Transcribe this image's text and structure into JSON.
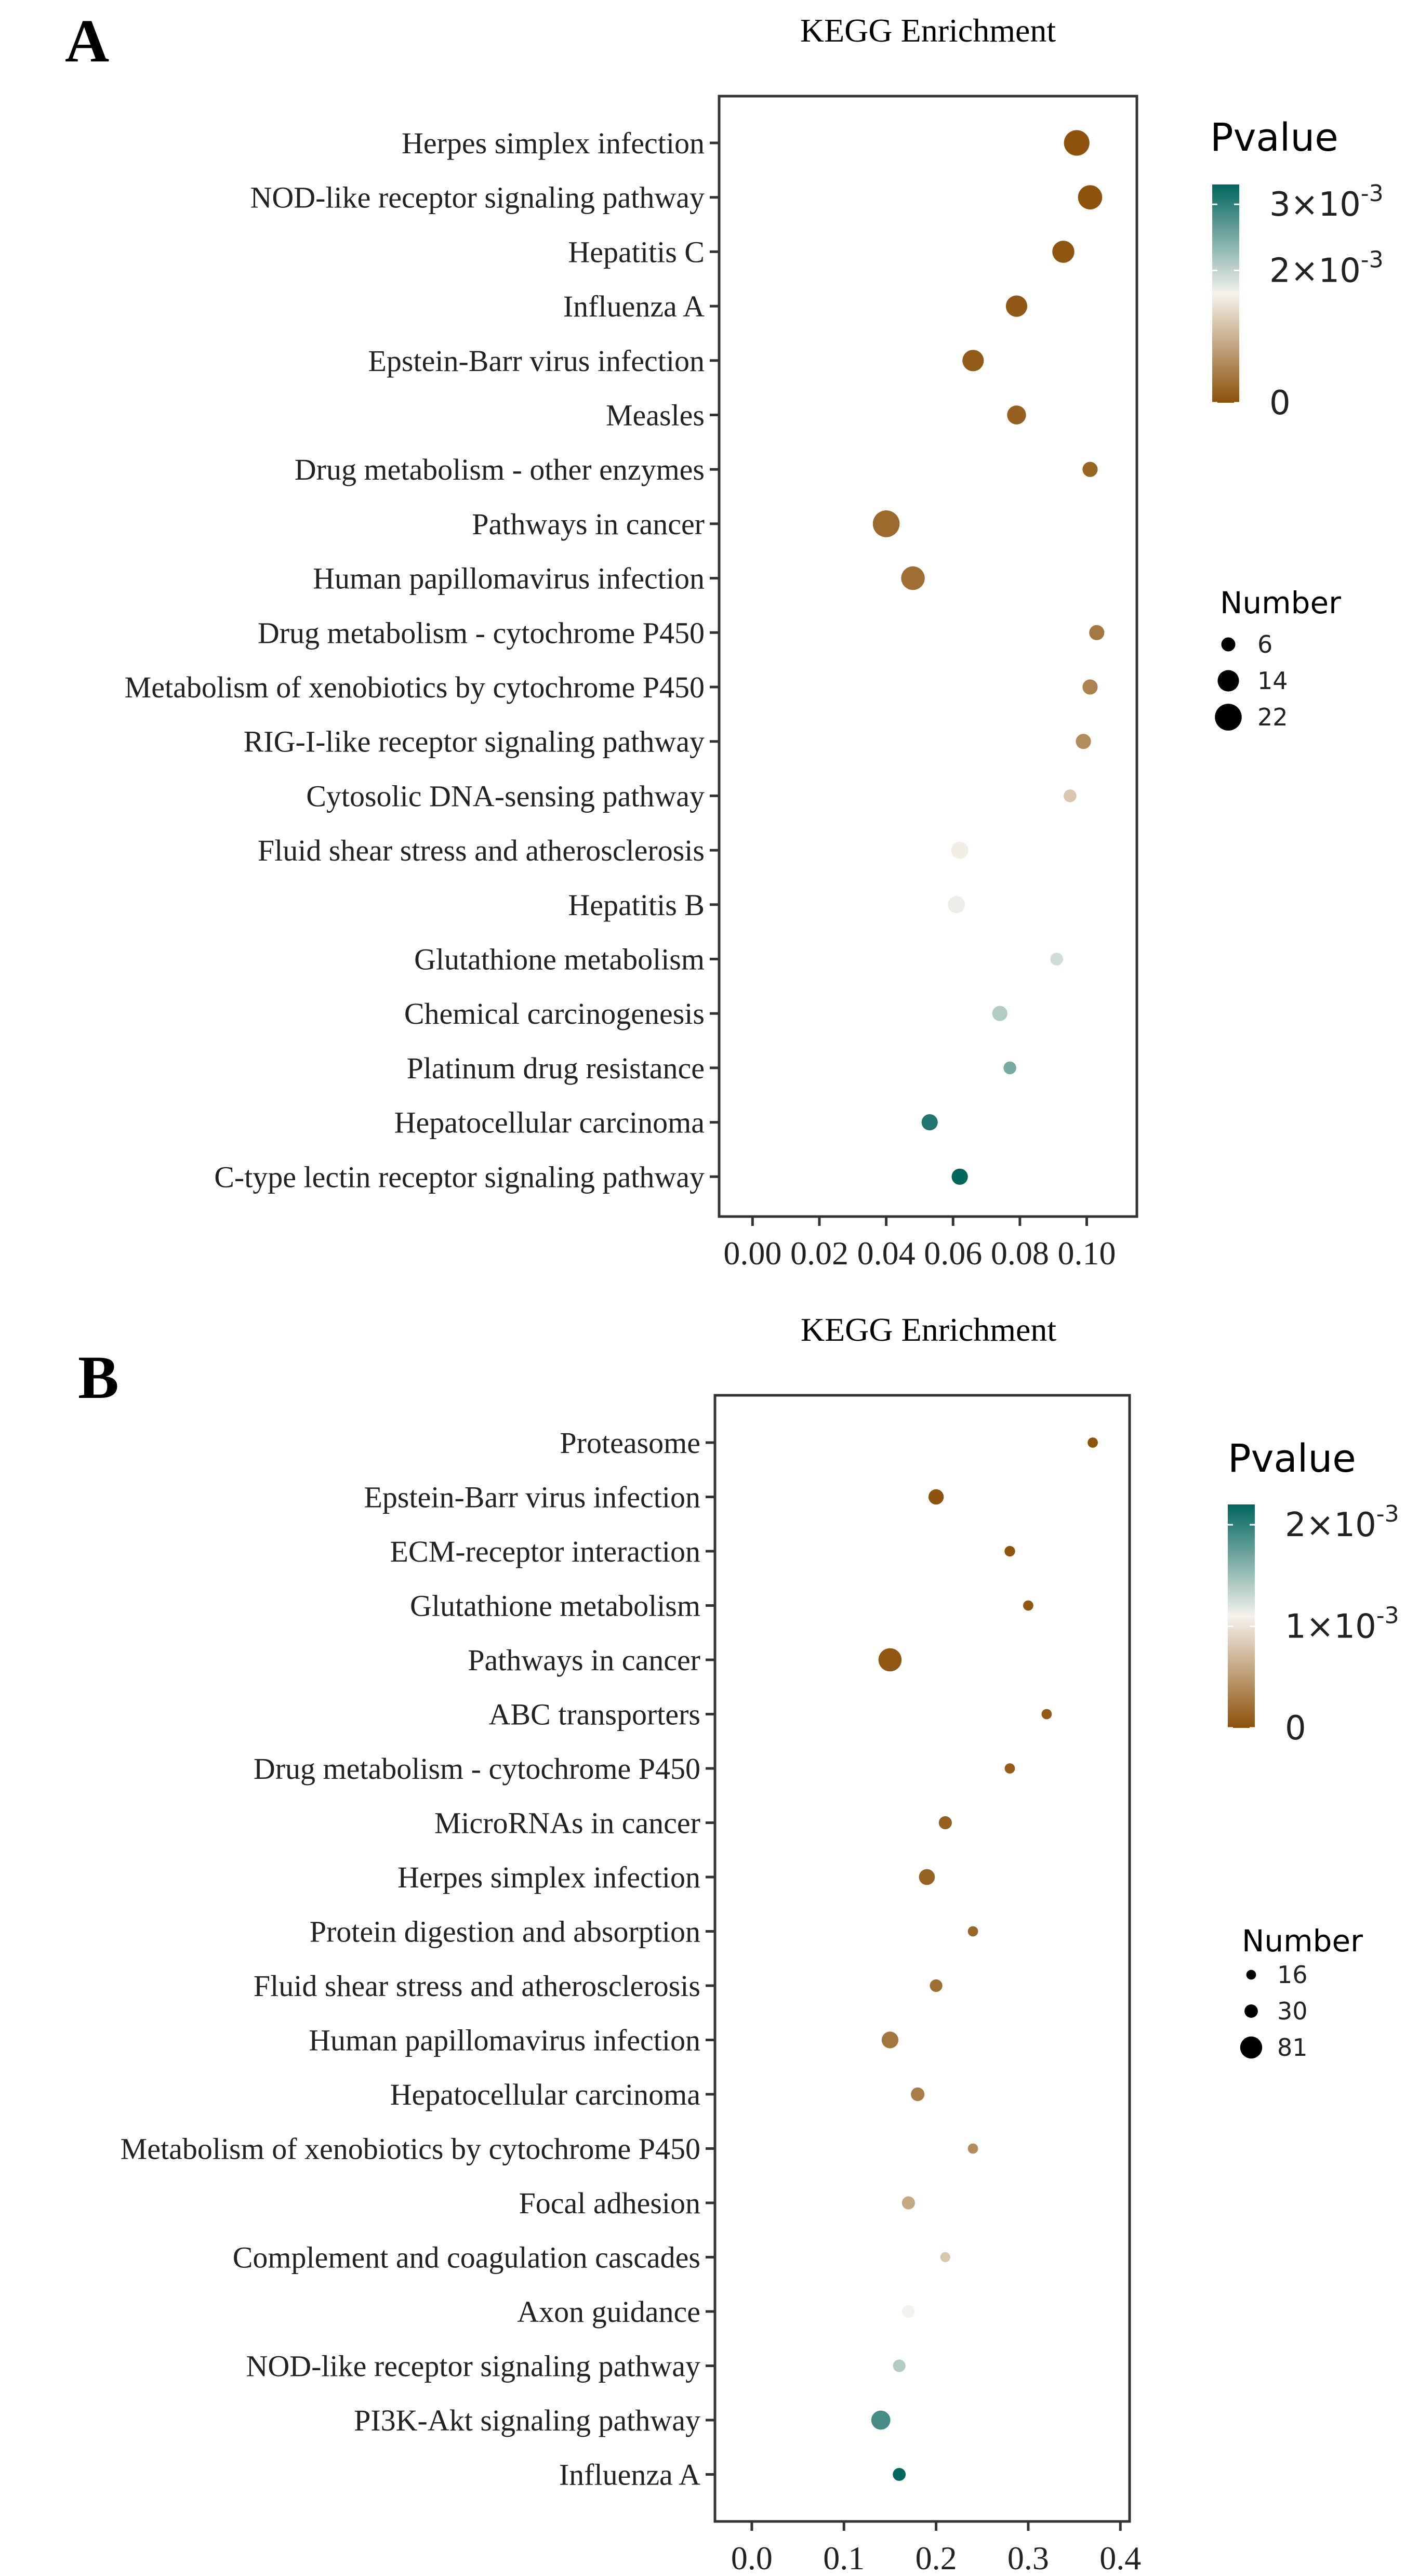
{
  "chart_data": [
    {
      "type": "scatter",
      "panel_label": "A",
      "title": "KEGG Enrichment",
      "xlabel": "",
      "ylabel": "",
      "xlim": [
        -0.01,
        0.115
      ],
      "x_ticks": [
        0.0,
        0.02,
        0.04,
        0.06,
        0.08,
        0.1
      ],
      "x_tick_labels": [
        "0.00",
        "0.02",
        "0.04",
        "0.06",
        "0.08",
        "0.10"
      ],
      "grid": false,
      "legend_position": "right",
      "color_legend": {
        "title": "Pvalue",
        "min": 0,
        "max": 0.0033,
        "low_color": "#8C510A",
        "mid_color": "#F5F2EC",
        "high_color": "#01665E",
        "ticks": [
          {
            "value": 0,
            "base": "0",
            "exp": ""
          },
          {
            "value": 0.002,
            "base": "2×10",
            "exp": "-3"
          },
          {
            "value": 0.003,
            "base": "3×10",
            "exp": "-3"
          }
        ]
      },
      "size_legend": {
        "title": "Number",
        "entries": [
          {
            "value": 6,
            "label": "6"
          },
          {
            "value": 14,
            "label": "14"
          },
          {
            "value": 22,
            "label": "22"
          }
        ]
      },
      "points": [
        {
          "pathway": "Herpes simplex infection",
          "x": 0.097,
          "number": 20,
          "pvalue": 1e-05
        },
        {
          "pathway": "NOD-like receptor signaling pathway",
          "x": 0.101,
          "number": 18,
          "pvalue": 2e-05
        },
        {
          "pathway": "Hepatitis C",
          "x": 0.093,
          "number": 15,
          "pvalue": 5e-05
        },
        {
          "pathway": "Influenza A",
          "x": 0.079,
          "number": 14,
          "pvalue": 8e-05
        },
        {
          "pathway": "Epstein-Barr virus infection",
          "x": 0.066,
          "number": 14,
          "pvalue": 0.0001
        },
        {
          "pathway": "Measles",
          "x": 0.079,
          "number": 11,
          "pvalue": 0.00015
        },
        {
          "pathway": "Drug metabolism - other enzymes",
          "x": 0.101,
          "number": 7,
          "pvalue": 0.0002
        },
        {
          "pathway": "Pathways in cancer",
          "x": 0.04,
          "number": 22,
          "pvalue": 0.00025
        },
        {
          "pathway": "Human papillomavirus infection",
          "x": 0.048,
          "number": 17,
          "pvalue": 0.0003
        },
        {
          "pathway": "Drug metabolism - cytochrome P450",
          "x": 0.103,
          "number": 7,
          "pvalue": 0.0004
        },
        {
          "pathway": "Metabolism of xenobiotics by cytochrome P450",
          "x": 0.101,
          "number": 7,
          "pvalue": 0.0005
        },
        {
          "pathway": "RIG-I-like receptor signaling pathway",
          "x": 0.099,
          "number": 7,
          "pvalue": 0.0006
        },
        {
          "pathway": "Cytosolic DNA-sensing pathway",
          "x": 0.095,
          "number": 5,
          "pvalue": 0.0012
        },
        {
          "pathway": "Fluid shear stress and atherosclerosis",
          "x": 0.062,
          "number": 9,
          "pvalue": 0.0016
        },
        {
          "pathway": "Hepatitis B",
          "x": 0.061,
          "number": 9,
          "pvalue": 0.0017
        },
        {
          "pathway": "Glutathione metabolism",
          "x": 0.091,
          "number": 5,
          "pvalue": 0.0019
        },
        {
          "pathway": "Chemical carcinogenesis",
          "x": 0.074,
          "number": 7,
          "pvalue": 0.0021
        },
        {
          "pathway": "Platinum drug resistance",
          "x": 0.077,
          "number": 5,
          "pvalue": 0.0025
        },
        {
          "pathway": "Hepatocellular carcinoma",
          "x": 0.053,
          "number": 8,
          "pvalue": 0.0031
        },
        {
          "pathway": "C-type lectin receptor signaling pathway",
          "x": 0.062,
          "number": 8,
          "pvalue": 0.0033
        }
      ]
    },
    {
      "type": "scatter",
      "panel_label": "B",
      "title": "KEGG Enrichment",
      "xlabel": "",
      "ylabel": "",
      "xlim": [
        -0.04,
        0.41
      ],
      "x_ticks": [
        0.0,
        0.1,
        0.2,
        0.3,
        0.4
      ],
      "x_tick_labels": [
        "0.0",
        "0.1",
        "0.2",
        "0.3",
        "0.4"
      ],
      "grid": false,
      "legend_position": "right",
      "color_legend": {
        "title": "Pvalue",
        "min": 0,
        "max": 0.0022,
        "low_color": "#8C510A",
        "mid_color": "#F5F2EC",
        "high_color": "#01665E",
        "ticks": [
          {
            "value": 0,
            "base": "0",
            "exp": ""
          },
          {
            "value": 0.001,
            "base": "1×10",
            "exp": "-3"
          },
          {
            "value": 0.002,
            "base": "2×10",
            "exp": "-3"
          }
        ]
      },
      "size_legend": {
        "title": "Number",
        "entries": [
          {
            "value": 16,
            "label": "16"
          },
          {
            "value": 30,
            "label": "30"
          },
          {
            "value": 81,
            "label": "81"
          }
        ]
      },
      "points": [
        {
          "pathway": "Proteasome",
          "x": 0.37,
          "number": 16,
          "pvalue": 1e-05
        },
        {
          "pathway": "Epstein-Barr virus infection",
          "x": 0.2,
          "number": 35,
          "pvalue": 2e-05
        },
        {
          "pathway": "ECM-receptor interaction",
          "x": 0.28,
          "number": 17,
          "pvalue": 3e-05
        },
        {
          "pathway": "Glutathione metabolism",
          "x": 0.3,
          "number": 16,
          "pvalue": 4e-05
        },
        {
          "pathway": "Pathways in cancer",
          "x": 0.15,
          "number": 81,
          "pvalue": 5e-05
        },
        {
          "pathway": "ABC transporters",
          "x": 0.32,
          "number": 16,
          "pvalue": 6e-05
        },
        {
          "pathway": "Drug metabolism - cytochrome P450",
          "x": 0.28,
          "number": 16,
          "pvalue": 8e-05
        },
        {
          "pathway": "MicroRNAs in cancer",
          "x": 0.21,
          "number": 26,
          "pvalue": 0.0001
        },
        {
          "pathway": "Herpes simplex infection",
          "x": 0.19,
          "number": 38,
          "pvalue": 0.00012
        },
        {
          "pathway": "Protein digestion and absorption",
          "x": 0.24,
          "number": 16,
          "pvalue": 0.00015
        },
        {
          "pathway": "Fluid shear stress and atherosclerosis",
          "x": 0.2,
          "number": 24,
          "pvalue": 0.0002
        },
        {
          "pathway": "Human papillomavirus infection",
          "x": 0.15,
          "number": 42,
          "pvalue": 0.00025
        },
        {
          "pathway": "Hepatocellular carcinoma",
          "x": 0.18,
          "number": 28,
          "pvalue": 0.0003
        },
        {
          "pathway": "Metabolism of xenobiotics by cytochrome P450",
          "x": 0.24,
          "number": 16,
          "pvalue": 0.0004
        },
        {
          "pathway": "Focal adhesion",
          "x": 0.17,
          "number": 26,
          "pvalue": 0.0006
        },
        {
          "pathway": "Complement and coagulation cascades",
          "x": 0.21,
          "number": 15,
          "pvalue": 0.0008
        },
        {
          "pathway": "Axon guidance",
          "x": 0.17,
          "number": 25,
          "pvalue": 0.0011
        },
        {
          "pathway": "NOD-like receptor signaling pathway",
          "x": 0.16,
          "number": 24,
          "pvalue": 0.0014
        },
        {
          "pathway": "PI3K-Akt signaling pathway",
          "x": 0.14,
          "number": 55,
          "pvalue": 0.0019
        },
        {
          "pathway": "Influenza A",
          "x": 0.16,
          "number": 25,
          "pvalue": 0.0022
        }
      ]
    }
  ]
}
